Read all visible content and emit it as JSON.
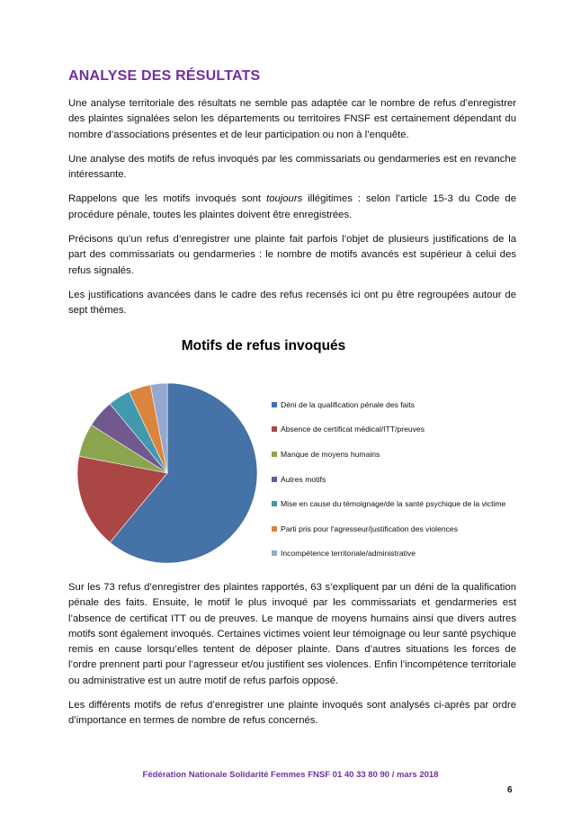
{
  "title": "ANALYSE DES RÉSULTATS",
  "paragraphs_top": [
    "Une analyse territoriale des résultats ne semble pas adaptée car le nombre de refus d’enregistrer des plaintes signalées selon les départements ou territoires FNSF est certainement dépendant du nombre d’associations présentes et de leur participation ou non à l’enquête.",
    "Une analyse des motifs de refus invoqués par les commissariats ou gendarmeries est en revanche intéressante.",
    {
      "before": "Rappelons que les motifs invoqués sont ",
      "italic": "toujours",
      "after": " illégitimes : selon l’article 15-3 du Code de procédure pénale, toutes les plaintes doivent être enregistrées."
    },
    "Précisons qu’un refus d’enregistrer une plainte fait parfois l’objet de plusieurs justifications de la part des commissariats ou gendarmeries : le nombre de motifs avancés est supérieur à celui des refus signalés.",
    "Les justifications avancées dans le cadre des refus recensés ici ont pu être regroupées autour de sept thèmes."
  ],
  "chart_data": {
    "type": "pie",
    "title": "Motifs de refus invoqués",
    "legend_position": "right",
    "start": "top, clockwise",
    "categories": [
      "Déni de la qualification pénale des faits",
      "Absence de certificat médical/ITT/preuves",
      "Manque de moyens humains",
      "Autres motifs",
      "Mise en cause du témoignage/de la santé psychique de la victime",
      "Parti pris pour l'agresseur/justification des violences",
      "Incompétence territoriale/administrative"
    ],
    "values": [
      61,
      17,
      6,
      5,
      4,
      4,
      3
    ],
    "colors": [
      "#4572a7",
      "#aa4643",
      "#89a54e",
      "#71588f",
      "#4198af",
      "#db843d",
      "#93a9cf"
    ]
  },
  "paragraphs_bottom": [
    "Sur les 73 refus d’enregistrer des plaintes rapportés, 63 s’expliquent par un déni de la qualification pénale des faits. Ensuite, le motif le plus invoqué par les commissariats et gendarmeries est l’absence de certificat ITT ou de preuves. Le manque de moyens humains ainsi que divers autres motifs sont également invoqués. Certaines victimes voient leur témoignage ou leur santé psychique remis en cause lorsqu’elles tentent de déposer plainte. Dans d’autres situations les forces de l’ordre prennent parti pour l’agresseur et/ou justifient ses violences. Enfin l’incompétence territoriale ou administrative est un autre motif de refus parfois opposé.",
    "Les différents motifs de refus d’enregistrer une plainte invoqués sont analysés ci-après par ordre d’importance en termes de nombre de refus concernés."
  ],
  "footer": "Fédération Nationale Solidarité Femmes FNSF 01 40 33 80 90 / mars 2018",
  "page_number": "6"
}
